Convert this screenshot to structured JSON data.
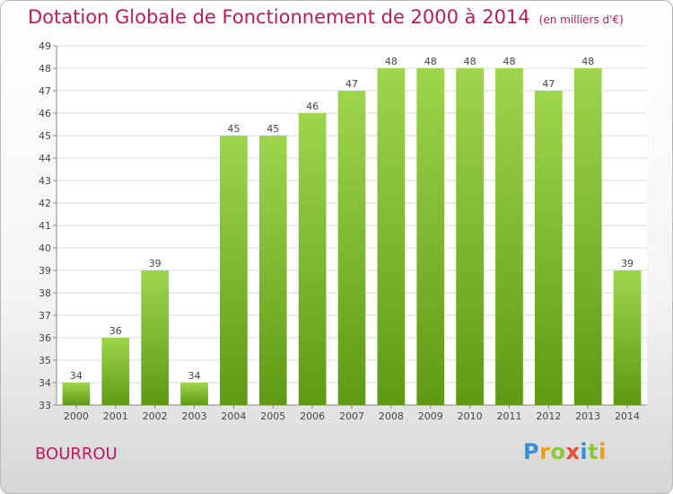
{
  "header": {
    "title": "Dotation Globale de Fonctionnement de 2000 à 2014",
    "subtitle": "(en milliers d'€)"
  },
  "footer": {
    "commune": "BOURROU",
    "brand_letters": [
      "P",
      "r",
      "o",
      "x",
      "i",
      "t",
      "i"
    ],
    "brand_colors": [
      "#3a8fd0",
      "#f39c12",
      "#8cc63f",
      "#e74c3c",
      "#3a8fd0",
      "#8cc63f",
      "#f39c12"
    ]
  },
  "colors": {
    "bar_top": "#9dd64d",
    "bar_bottom": "#5f9a14",
    "title": "#c2185b",
    "grid": "#d8d8d8"
  },
  "chart_data": {
    "type": "bar",
    "title": "Dotation Globale de Fonctionnement de 2000 à 2014",
    "subtitle": "(en milliers d'€)",
    "categories": [
      "2000",
      "2001",
      "2002",
      "2003",
      "2004",
      "2005",
      "2006",
      "2007",
      "2008",
      "2009",
      "2010",
      "2011",
      "2012",
      "2013",
      "2014"
    ],
    "values": [
      34,
      36,
      39,
      34,
      45,
      45,
      46,
      47,
      48,
      48,
      48,
      48,
      47,
      48,
      39
    ],
    "ylim": [
      33,
      49
    ],
    "yticks": [
      33,
      34,
      35,
      36,
      37,
      38,
      39,
      40,
      41,
      42,
      43,
      44,
      45,
      46,
      47,
      48,
      49
    ],
    "grid": true,
    "data_labels": true
  }
}
